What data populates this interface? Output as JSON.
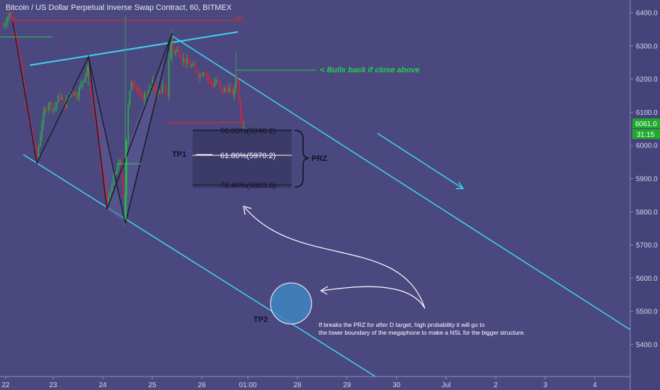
{
  "chart_data": {
    "type": "candlestick",
    "title": "Bitcoin / US Dollar Perpetual Inverse Swap Contract, 60, BITMEX",
    "y_ticks": [
      "6400.0",
      "6300.0",
      "6200.0",
      "6100.0",
      "6000.0",
      "5900.0",
      "5800.0",
      "5700.0",
      "5600.0",
      "5500.0",
      "5400.0"
    ],
    "x_ticks": [
      "22",
      "23",
      "24",
      "25",
      "26",
      "01:00",
      "28",
      "29",
      "30",
      "Jul",
      "2",
      "3",
      "4"
    ],
    "last_price": "6061.0",
    "countdown": "31:15",
    "ylim": [
      5320,
      6440
    ],
    "fib_levels": [
      {
        "label": "50.00%(6040.2)",
        "value": 6040.2
      },
      {
        "label": "61.80%(5970.2)",
        "value": 5970.2
      },
      {
        "label": "76.40%(5883.5)",
        "value": 5883.5
      }
    ],
    "annotations": {
      "prz": "PRZ",
      "tp1": "TP1",
      "tp2": "TP2",
      "bulls": "< Bulls back if close above",
      "note_line1": "If breaks the PRZ for after D target, high probability it will go to",
      "note_line2": "the lower boundary of the megaphone to make a NSL for the bigger structure."
    },
    "colors": {
      "background": "#4b4880",
      "up": "#2ea84a",
      "down": "#d0263a",
      "trendline": "#3fd3f2",
      "green_line": "#22d14a",
      "red_line": "#e02a2a",
      "label_bg": "#1faa2e"
    }
  }
}
